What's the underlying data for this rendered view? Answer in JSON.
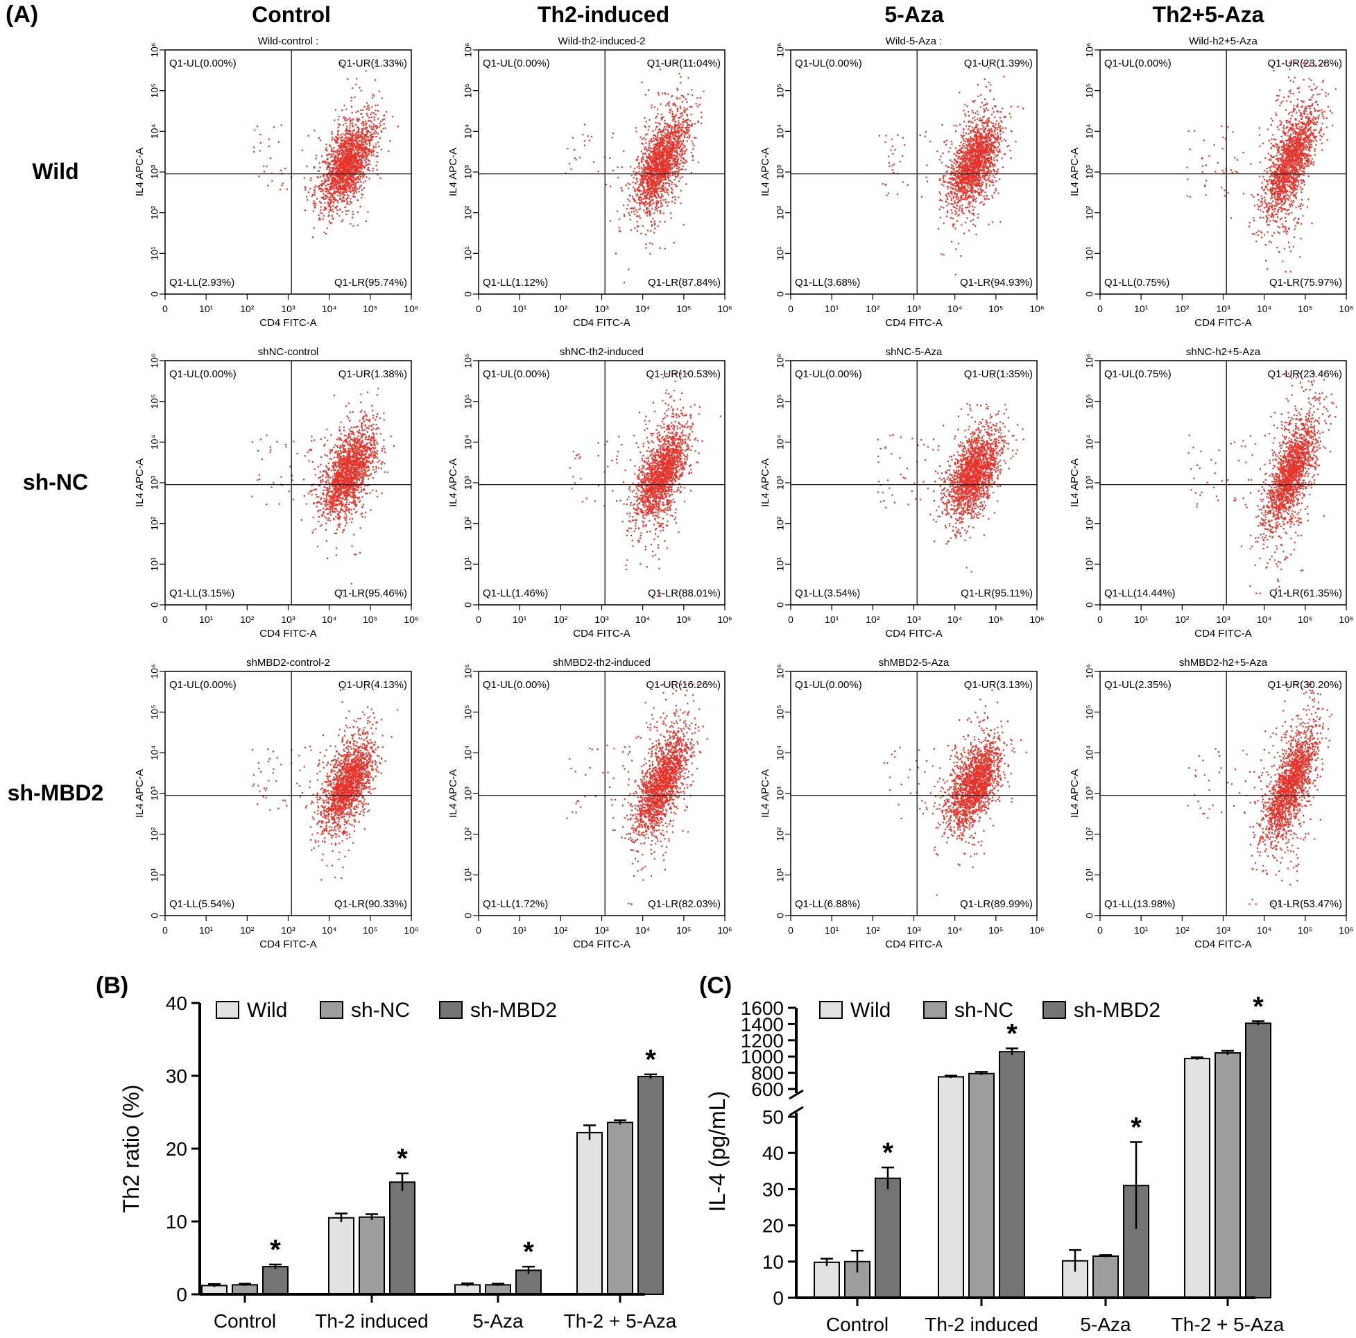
{
  "panel_labels": {
    "a": "(A)",
    "b": "(B)",
    "c": "(C)"
  },
  "column_headers": [
    "Control",
    "Th2-induced",
    "5-Aza",
    "Th2+5-Aza"
  ],
  "row_labels": [
    "Wild",
    "sh-NC",
    "sh-MBD2"
  ],
  "colors": {
    "dots": "#e8332a",
    "bar_wild": "#e2e2e2",
    "bar_shnc": "#9e9e9e",
    "bar_shmbd2": "#747474",
    "axis": "#000000"
  },
  "chart_data": [
    {
      "type": "scatter",
      "xlabel": "CD4 FITC-A",
      "ylabel": "IL4 APC-A",
      "x_ticks": [
        "0",
        "10¹",
        "10²",
        "10³",
        "10⁴",
        "10⁵",
        "10⁶"
      ],
      "y_ticks": [
        "0",
        "10¹",
        "10²",
        "10³",
        "10⁴",
        "10⁵",
        "10⁶"
      ],
      "gate": {
        "x": 1200,
        "y": 900
      },
      "plots": [
        {
          "title": "Wild-control :",
          "ul": "Q1-UL(0.00%)",
          "ur": "Q1-UR(1.33%)",
          "ll": "Q1-LL(2.93%)",
          "lr": "Q1-LR(95.74%)"
        },
        {
          "title": "Wild-th2-induced-2",
          "ul": "Q1-UL(0.00%)",
          "ur": "Q1-UR(11.04%)",
          "ll": "Q1-LL(1.12%)",
          "lr": "Q1-LR(87.84%)"
        },
        {
          "title": "Wild-5-Aza :",
          "ul": "Q1-UL(0.00%)",
          "ur": "Q1-UR(1.39%)",
          "ll": "Q1-LL(3.68%)",
          "lr": "Q1-LR(94.93%)"
        },
        {
          "title": "Wild-h2+5-Aza",
          "ul": "Q1-UL(0.00%)",
          "ur": "Q1-UR(23.28%)",
          "ll": "Q1-LL(0.75%)",
          "lr": "Q1-LR(75.97%)"
        },
        {
          "title": "shNC-control",
          "ul": "Q1-UL(0.00%)",
          "ur": "Q1-UR(1.38%)",
          "ll": "Q1-LL(3.15%)",
          "lr": "Q1-LR(95.46%)"
        },
        {
          "title": "shNC-th2-induced",
          "ul": "Q1-UL(0.00%)",
          "ur": "Q1-UR(10.53%)",
          "ll": "Q1-LL(1.46%)",
          "lr": "Q1-LR(88.01%)"
        },
        {
          "title": "shNC-5-Aza",
          "ul": "Q1-UL(0.00%)",
          "ur": "Q1-UR(1.35%)",
          "ll": "Q1-LL(3.54%)",
          "lr": "Q1-LR(95.11%)"
        },
        {
          "title": "shNC-h2+5-Aza",
          "ul": "Q1-UL(0.75%)",
          "ur": "Q1-UR(23.46%)",
          "ll": "Q1-LL(14.44%)",
          "lr": "Q1-LR(61.35%)"
        },
        {
          "title": "shMBD2-control-2",
          "ul": "Q1-UL(0.00%)",
          "ur": "Q1-UR(4.13%)",
          "ll": "Q1-LL(5.54%)",
          "lr": "Q1-LR(90.33%)"
        },
        {
          "title": "shMBD2-th2-induced",
          "ul": "Q1-UL(0.00%)",
          "ur": "Q1-UR(16.26%)",
          "ll": "Q1-LL(1.72%)",
          "lr": "Q1-LR(82.03%)"
        },
        {
          "title": "shMBD2-5-Aza",
          "ul": "Q1-UL(0.00%)",
          "ur": "Q1-UR(3.13%)",
          "ll": "Q1-LL(6.88%)",
          "lr": "Q1-LR(89.99%)"
        },
        {
          "title": "shMBD2-h2+5-Aza",
          "ul": "Q1-UL(2.35%)",
          "ur": "Q1-UR(30.20%)",
          "ll": "Q1-LL(13.98%)",
          "lr": "Q1-LR(53.47%)"
        }
      ]
    },
    {
      "type": "bar",
      "ylabel": "Th2 ratio (%)",
      "ylim": [
        0,
        40
      ],
      "y_ticks": [
        0,
        10,
        20,
        30,
        40
      ],
      "categories": [
        "Control",
        "Th-2 induced",
        "5-Aza",
        "Th-2 + 5-Aza"
      ],
      "legend": "top",
      "series": [
        {
          "name": "Wild",
          "values": [
            1.2,
            10.5,
            1.3,
            22.2
          ],
          "errors": [
            0.2,
            0.6,
            0.2,
            1.0
          ]
        },
        {
          "name": "sh-NC",
          "values": [
            1.3,
            10.6,
            1.3,
            23.6
          ],
          "errors": [
            0.15,
            0.4,
            0.15,
            0.3
          ]
        },
        {
          "name": "sh-MBD2",
          "values": [
            3.8,
            15.4,
            3.3,
            29.9
          ],
          "errors": [
            0.3,
            1.2,
            0.5,
            0.3
          ]
        }
      ],
      "significance": [
        "*",
        "*",
        "*",
        "*"
      ]
    },
    {
      "type": "bar",
      "ylabel": "IL-4 (pg/mL)",
      "y_break": [
        50,
        600
      ],
      "y_ticks_lower": [
        0,
        10,
        20,
        30,
        40,
        50
      ],
      "y_ticks_upper": [
        600,
        800,
        1000,
        1200,
        1400,
        1600
      ],
      "categories": [
        "Control",
        "Th-2 induced",
        "5-Aza",
        "Th-2 + 5-Aza"
      ],
      "legend": "top",
      "series": [
        {
          "name": "Wild",
          "values": [
            9.8,
            750,
            10.2,
            975
          ],
          "errors": [
            1.0,
            15,
            3.0,
            15
          ]
        },
        {
          "name": "sh-NC",
          "values": [
            10.0,
            790,
            11.5,
            1045
          ],
          "errors": [
            3.0,
            20,
            0.3,
            25
          ]
        },
        {
          "name": "sh-MBD2",
          "values": [
            33.0,
            1060,
            31.0,
            1410
          ],
          "errors": [
            3.0,
            40,
            12.0,
            25
          ]
        }
      ],
      "significance": [
        "*",
        "*",
        "*",
        "*"
      ]
    }
  ]
}
